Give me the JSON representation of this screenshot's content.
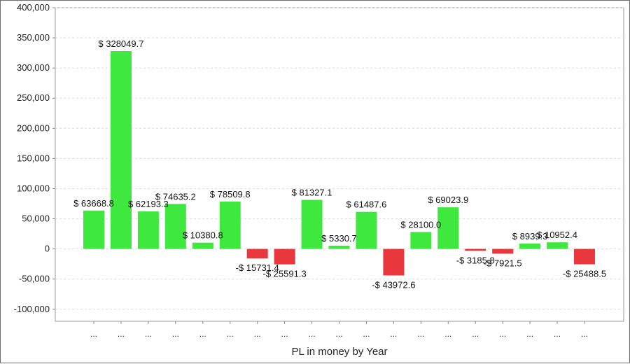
{
  "chart_data": {
    "type": "bar",
    "title": "",
    "xlabel": "PL in money by Year",
    "ylabel": "",
    "ylim": [
      -120000,
      400000
    ],
    "yticks": [
      -100000,
      -50000,
      0,
      50000,
      100000,
      150000,
      200000,
      250000,
      300000,
      350000,
      400000
    ],
    "ytick_labels": [
      "-100,000",
      "-50,000",
      "0",
      "50,000",
      "100,000",
      "150,000",
      "200,000",
      "250,000",
      "300,000",
      "350,000",
      "400,000"
    ],
    "grid": true,
    "categories": [
      "...",
      "...",
      "...",
      "...",
      "...",
      "...",
      "...",
      "...",
      "...",
      "...",
      "...",
      "...",
      "...",
      "...",
      "...",
      "...",
      "...",
      "...",
      "..."
    ],
    "values": [
      63668.8,
      328049.7,
      62193.3,
      74635.2,
      10380.8,
      78509.8,
      -15731.4,
      -25591.3,
      81327.1,
      5330.7,
      61487.6,
      -43972.6,
      28100.0,
      69023.9,
      -3185.8,
      -7921.5,
      8939.3,
      10952.4,
      -25488.5
    ],
    "data_labels": [
      "$ 63668.8",
      "$ 328049.7",
      "$ 62193.3",
      "$ 74635.2",
      "$ 10380.8",
      "$ 78509.8",
      "-$ 15731.4",
      "-$ 25591.3",
      "$ 81327.1",
      "$ 5330.7",
      "$ 61487.6",
      "-$ 43972.6",
      "$ 28100.0",
      "$ 69023.9",
      "-$ 3185.8",
      "-$ 7921.5",
      "$ 8939.3",
      "$ 10952.4",
      "-$ 25488.5"
    ],
    "colors": {
      "positive": "#3ee83e",
      "negative": "#e8383e",
      "grid": "#dcdcdc",
      "axis": "#888888"
    }
  }
}
